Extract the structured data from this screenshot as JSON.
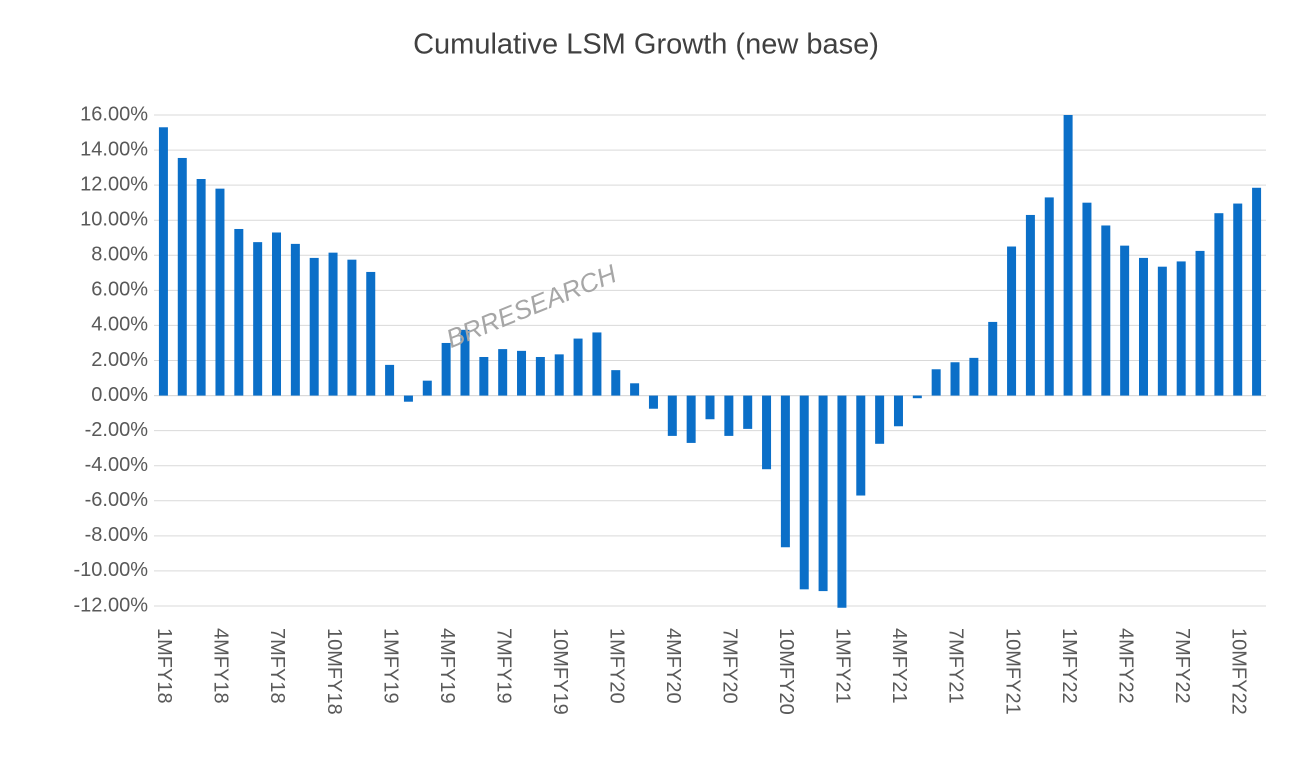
{
  "chart_data": {
    "type": "bar",
    "title": "Cumulative LSM Growth (new base)",
    "annotation": "BRRESEARCH",
    "categories": [
      "1MFY18",
      null,
      null,
      "4MFY18",
      null,
      null,
      "7MFY18",
      null,
      null,
      "10MFY18",
      null,
      null,
      "1MFY19",
      null,
      null,
      "4MFY19",
      null,
      null,
      "7MFY19",
      null,
      null,
      "10MFY19",
      null,
      null,
      "1MFY20",
      null,
      null,
      "4MFY20",
      null,
      null,
      "7MFY20",
      null,
      null,
      "10MFY20",
      null,
      null,
      "1MFY21",
      null,
      null,
      "4MFY21",
      null,
      null,
      "7MFY21",
      null,
      null,
      "10MFY21",
      null,
      null,
      "1MFY22",
      null,
      null,
      "4MFY22",
      null,
      null,
      "7MFY22",
      null,
      null,
      "10MFY22",
      null
    ],
    "values": [
      15.3,
      13.55,
      12.35,
      11.8,
      9.5,
      8.75,
      9.3,
      8.65,
      7.85,
      8.15,
      7.75,
      7.05,
      1.75,
      -0.35,
      0.85,
      3.0,
      3.75,
      2.2,
      2.65,
      2.55,
      2.2,
      2.35,
      3.25,
      3.6,
      1.45,
      0.7,
      -0.75,
      -2.3,
      -2.7,
      -1.35,
      -2.3,
      -1.9,
      -4.2,
      -8.65,
      -11.05,
      -11.15,
      -12.1,
      -5.7,
      -2.75,
      -1.75,
      -0.15,
      1.5,
      1.9,
      2.15,
      4.2,
      8.5,
      10.3,
      11.3,
      16.0,
      11.0,
      9.7,
      8.55,
      7.85,
      7.35,
      7.65,
      8.25,
      10.4,
      10.95,
      11.85
    ],
    "color": "#0b6fc8",
    "ylim": [
      -12,
      16
    ],
    "yticks": [
      {
        "value": 16,
        "label": "16.00%"
      },
      {
        "value": 14,
        "label": "14.00%"
      },
      {
        "value": 12,
        "label": "12.00%"
      },
      {
        "value": 10,
        "label": "10.00%"
      },
      {
        "value": 8,
        "label": "8.00%"
      },
      {
        "value": 6,
        "label": "6.00%"
      },
      {
        "value": 4,
        "label": "4.00%"
      },
      {
        "value": 2,
        "label": "2.00%"
      },
      {
        "value": 0,
        "label": "0.00%"
      },
      {
        "value": -2,
        "label": "-2.00%"
      },
      {
        "value": -4,
        "label": "-4.00%"
      },
      {
        "value": -6,
        "label": "-6.00%"
      },
      {
        "value": -8,
        "label": "-8.00%"
      },
      {
        "value": -10,
        "label": "-10.00%"
      },
      {
        "value": -12,
        "label": "-12.00%"
      }
    ],
    "grid": true
  }
}
